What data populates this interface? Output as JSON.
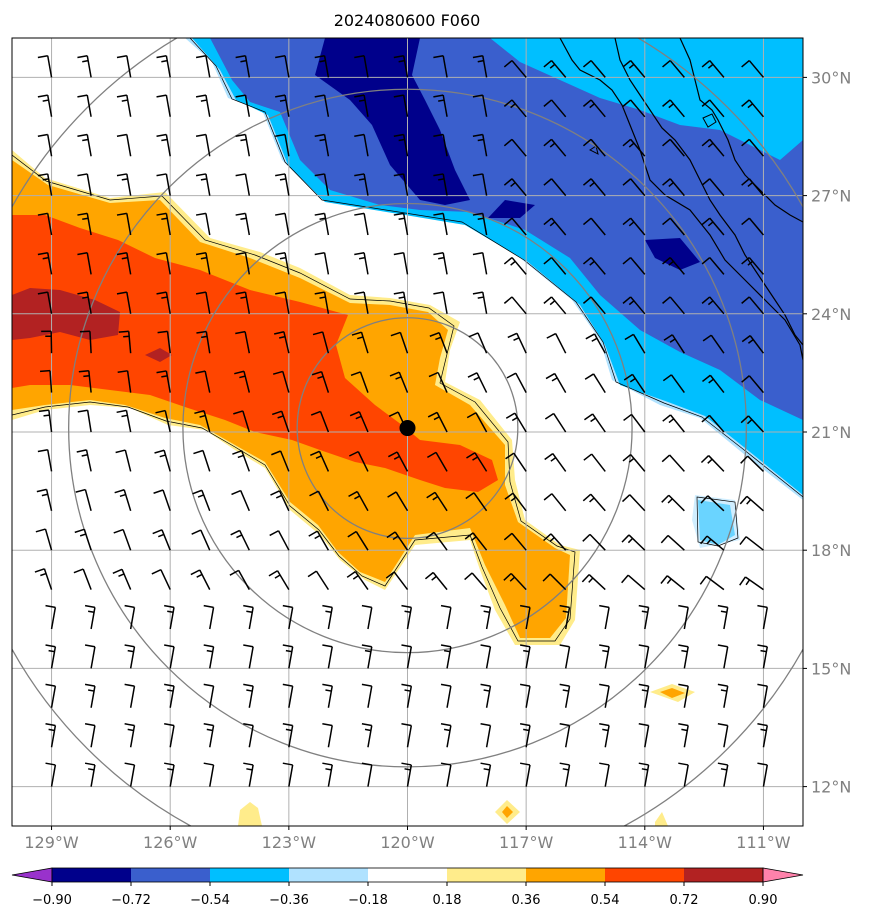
{
  "title": "2024080600 F060",
  "map": {
    "lon_range": [
      -130,
      -110
    ],
    "lat_range": [
      11,
      31
    ],
    "center": {
      "lon": -120.0,
      "lat": 21.1
    },
    "lon_ticks": [
      {
        "value": -129,
        "label": "129°W"
      },
      {
        "value": -126,
        "label": "126°W"
      },
      {
        "value": -123,
        "label": "123°W"
      },
      {
        "value": -120,
        "label": "120°W"
      },
      {
        "value": -117,
        "label": "117°W"
      },
      {
        "value": -114,
        "label": "114°W"
      },
      {
        "value": -111,
        "label": "111°W"
      }
    ],
    "lat_ticks": [
      {
        "value": 12,
        "label": "12°N"
      },
      {
        "value": 15,
        "label": "15°N"
      },
      {
        "value": 18,
        "label": "18°N"
      },
      {
        "value": 21,
        "label": "21°N"
      },
      {
        "value": 24,
        "label": "24°N"
      },
      {
        "value": 27,
        "label": "27°N"
      },
      {
        "value": 30,
        "label": "30°N"
      }
    ],
    "range_rings_deg": [
      2.8,
      5.7,
      8.6,
      11.5
    ],
    "colors": {
      "grid": "#b0b0b0",
      "rings": "#808080",
      "center_marker": "#000000"
    }
  },
  "colorbar": {
    "levels": [
      "−0.90",
      "−0.72",
      "−0.54",
      "−0.36",
      "−0.18",
      "0.18",
      "0.36",
      "0.54",
      "0.72",
      "0.90"
    ],
    "colors": [
      "#9932cc",
      "#00008b",
      "#3a5fcd",
      "#00bfff",
      "#b0e2ff",
      "#ffffff",
      "#ffec8b",
      "#ffa500",
      "#ff4500",
      "#b22222",
      "#ff82ab"
    ]
  }
}
